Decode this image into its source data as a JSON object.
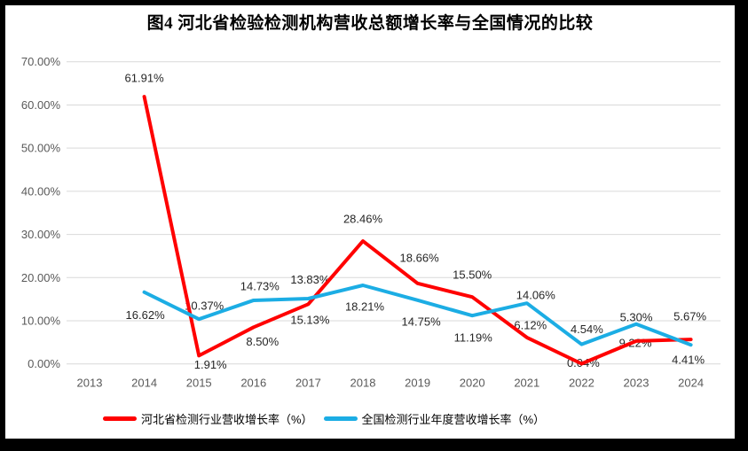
{
  "figure": {
    "title": "图4 河北省检验检测机构营收总额增长率与全国情况的比较"
  },
  "chart_data": {
    "type": "line",
    "title": "图4 河北省检验检测机构营收总额增长率与全国情况的比较",
    "categories": [
      "2013",
      "2014",
      "2015",
      "2016",
      "2017",
      "2018",
      "2019",
      "2020",
      "2021",
      "2022",
      "2023",
      "2024"
    ],
    "y_axis": {
      "ticks": [
        "0.00%",
        "10.00%",
        "20.00%",
        "30.00%",
        "40.00%",
        "50.00%",
        "60.00%",
        "70.00%"
      ],
      "min": 0,
      "max": 70,
      "tick_step": 10,
      "unit": "%"
    },
    "grid": "horizontal",
    "legend_position": "bottom",
    "series": [
      {
        "name": "河北省检测行业营收增长率（%）",
        "color": "#FF0000",
        "values": [
          null,
          61.91,
          1.91,
          8.5,
          13.83,
          28.46,
          18.66,
          15.5,
          6.12,
          0.04,
          5.3,
          5.67
        ],
        "labels": [
          "",
          "61.91%",
          "1.91%",
          "8.50%",
          "13.83%",
          "28.46%",
          "18.66%",
          "15.50%",
          "6.12%",
          "0.04%",
          "5.30%",
          "5.67%"
        ],
        "label_offsets": [
          [
            0,
            0
          ],
          [
            0,
            -21
          ],
          [
            13,
            10
          ],
          [
            10,
            16
          ],
          [
            2,
            -28
          ],
          [
            0,
            -25
          ],
          [
            2,
            -29
          ],
          [
            0,
            -25
          ],
          [
            4,
            -14
          ],
          [
            2,
            -1
          ],
          [
            0,
            -27
          ],
          [
            -1,
            -26
          ]
        ]
      },
      {
        "name": "全国检测行业年度营收增长率（%）",
        "color": "#1CADE4",
        "values": [
          null,
          16.62,
          10.37,
          14.73,
          15.13,
          18.21,
          14.75,
          11.19,
          14.06,
          4.54,
          9.22,
          4.41
        ],
        "labels": [
          "",
          "16.62%",
          "10.37%",
          "14.73%",
          "15.13%",
          "18.21%",
          "14.75%",
          "11.19%",
          "14.06%",
          "4.54%",
          "9.22%",
          "4.41%"
        ],
        "label_offsets": [
          [
            0,
            0
          ],
          [
            1,
            26
          ],
          [
            6,
            -15
          ],
          [
            7,
            -16
          ],
          [
            2,
            24
          ],
          [
            2,
            24
          ],
          [
            4,
            24
          ],
          [
            1,
            25
          ],
          [
            10,
            -9
          ],
          [
            6,
            -17
          ],
          [
            -1,
            21
          ],
          [
            -3,
            17
          ]
        ]
      }
    ]
  },
  "colors": {
    "background": "#FFFFFF",
    "frame": "#000000",
    "gridline": "#D9D9D9",
    "axis_text": "#595959",
    "data_label_text": "#262626",
    "title_text": "#000000",
    "series_hebei": "#FF0000",
    "series_national": "#1CADE4"
  }
}
